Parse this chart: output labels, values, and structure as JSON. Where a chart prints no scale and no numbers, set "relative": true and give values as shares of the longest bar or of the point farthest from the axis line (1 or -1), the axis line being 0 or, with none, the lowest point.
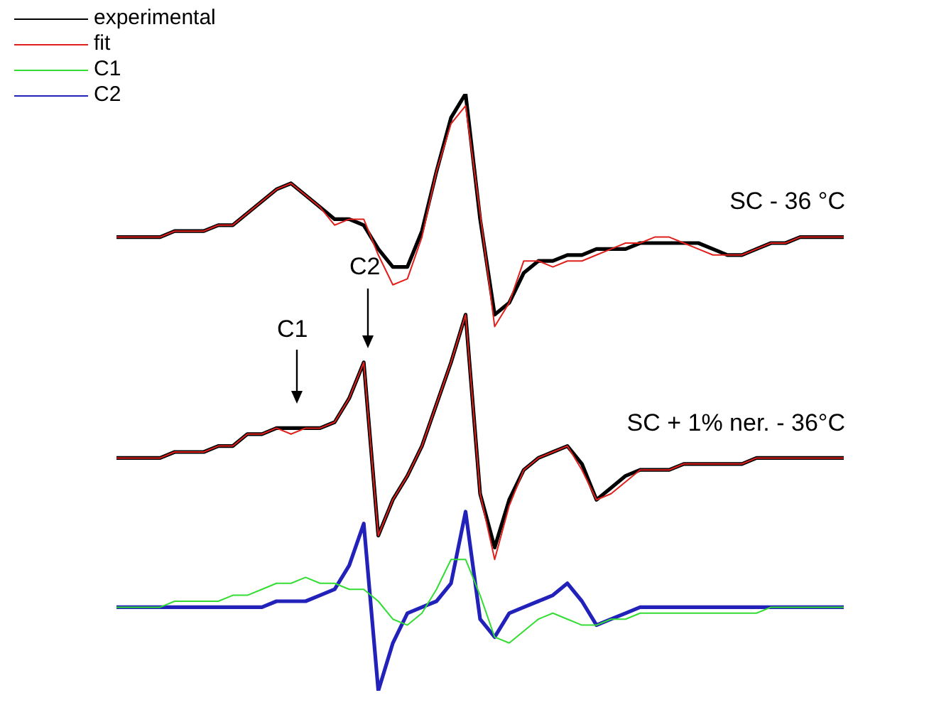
{
  "chart_data": {
    "type": "line",
    "relative": true,
    "legend": "top left",
    "marker": "none",
    "line_style": "solid",
    "tick_labels": false,
    "categories": [
      null,
      null,
      null,
      null,
      null,
      null,
      null,
      null,
      null,
      null,
      null,
      null,
      null,
      null,
      null,
      null,
      null,
      null,
      null,
      null,
      null,
      null,
      null,
      null,
      null,
      null,
      null,
      null,
      null,
      null,
      null,
      null,
      null,
      null,
      null,
      null,
      null,
      null,
      null,
      null,
      null,
      null,
      null,
      null,
      null,
      null,
      null,
      null,
      null,
      null,
      null
    ],
    "series": [
      {
        "name": "experimental",
        "color": "#000000",
        "values": [
          0.76,
          0.76,
          0.76,
          0.76,
          0.77,
          0.77,
          0.77,
          0.78,
          0.78,
          0.8,
          0.82,
          0.84,
          0.85,
          0.83,
          0.81,
          0.79,
          0.79,
          0.78,
          0.74,
          0.71,
          0.71,
          0.77,
          0.87,
          0.96,
          1.0,
          0.79,
          0.63,
          0.65,
          0.7,
          0.72,
          0.72,
          0.73,
          0.73,
          0.74,
          0.74,
          0.74,
          0.75,
          0.75,
          0.75,
          0.75,
          0.75,
          0.74,
          0.73,
          0.73,
          0.74,
          0.75,
          0.75,
          0.76,
          0.76,
          0.76,
          0.76
        ]
      },
      {
        "name": "fit",
        "color": "#e0201c",
        "values": [
          0.76,
          0.76,
          0.76,
          0.76,
          0.77,
          0.77,
          0.77,
          0.78,
          0.78,
          0.8,
          0.82,
          0.84,
          0.85,
          0.83,
          0.81,
          0.78,
          0.79,
          0.79,
          0.73,
          0.68,
          0.69,
          0.76,
          0.87,
          0.95,
          0.98,
          0.8,
          0.61,
          0.65,
          0.72,
          0.72,
          0.71,
          0.72,
          0.72,
          0.73,
          0.74,
          0.75,
          0.75,
          0.76,
          0.76,
          0.75,
          0.74,
          0.73,
          0.73,
          0.73,
          0.74,
          0.75,
          0.75,
          0.76,
          0.76,
          0.76,
          0.76
        ]
      },
      {
        "color": "#000000",
        "values": [
          0.39,
          0.39,
          0.39,
          0.39,
          0.4,
          0.4,
          0.4,
          0.41,
          0.41,
          0.43,
          0.43,
          0.44,
          0.44,
          0.44,
          0.44,
          0.45,
          0.49,
          0.55,
          0.26,
          0.32,
          0.36,
          0.41,
          0.48,
          0.55,
          0.63,
          0.33,
          0.24,
          0.32,
          0.37,
          0.39,
          0.4,
          0.41,
          0.38,
          0.32,
          0.34,
          0.36,
          0.37,
          0.37,
          0.37,
          0.38,
          0.38,
          0.38,
          0.38,
          0.38,
          0.39,
          0.39,
          0.39,
          0.39,
          0.39,
          0.39,
          0.39
        ]
      },
      {
        "color": "#e0201c",
        "values": [
          0.39,
          0.39,
          0.39,
          0.39,
          0.4,
          0.4,
          0.4,
          0.41,
          0.41,
          0.43,
          0.43,
          0.44,
          0.43,
          0.44,
          0.44,
          0.45,
          0.49,
          0.55,
          0.26,
          0.32,
          0.36,
          0.41,
          0.48,
          0.55,
          0.63,
          0.33,
          0.22,
          0.31,
          0.37,
          0.39,
          0.4,
          0.41,
          0.37,
          0.32,
          0.33,
          0.35,
          0.37,
          0.37,
          0.37,
          0.38,
          0.38,
          0.38,
          0.38,
          0.38,
          0.39,
          0.39,
          0.39,
          0.39,
          0.39,
          0.39,
          0.39
        ]
      },
      {
        "name": "C1",
        "color": "#33dd33",
        "values": [
          0.14,
          0.14,
          0.14,
          0.14,
          0.15,
          0.15,
          0.15,
          0.15,
          0.16,
          0.16,
          0.17,
          0.18,
          0.18,
          0.19,
          0.18,
          0.18,
          0.17,
          0.17,
          0.15,
          0.12,
          0.11,
          0.13,
          0.17,
          0.22,
          0.22,
          0.16,
          0.09,
          0.08,
          0.1,
          0.12,
          0.13,
          0.12,
          0.11,
          0.11,
          0.12,
          0.12,
          0.13,
          0.13,
          0.13,
          0.13,
          0.13,
          0.13,
          0.13,
          0.13,
          0.13,
          0.14,
          0.14,
          0.14,
          0.14,
          0.14,
          0.14
        ]
      },
      {
        "name": "C2",
        "color": "#2222bb",
        "values": [
          0.14,
          0.14,
          0.14,
          0.14,
          0.14,
          0.14,
          0.14,
          0.14,
          0.14,
          0.14,
          0.14,
          0.15,
          0.15,
          0.15,
          0.16,
          0.17,
          0.21,
          0.28,
          0,
          0.08,
          0.13,
          0.14,
          0.15,
          0.18,
          0.3,
          0.12,
          0.09,
          0.13,
          0.14,
          0.15,
          0.16,
          0.18,
          0.15,
          0.11,
          0.12,
          0.13,
          0.14,
          0.14,
          0.14,
          0.14,
          0.14,
          0.14,
          0.14,
          0.14,
          0.14,
          0.14,
          0.14,
          0.14,
          0.14,
          0.14,
          0.14
        ]
      }
    ],
    "annotations": [
      "SC - 36 °C",
      "SC + 1% ner. - 36°C",
      "C1",
      "C2"
    ]
  }
}
